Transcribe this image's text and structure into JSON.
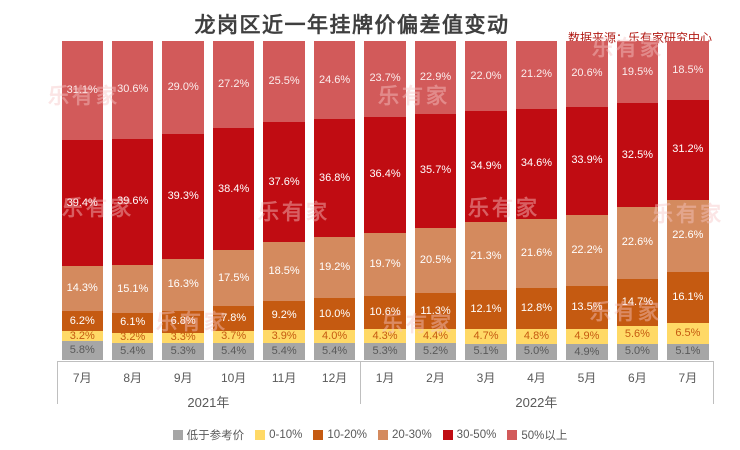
{
  "title": "龙岗区近一年挂牌价偏差值变动",
  "source": "数据来源：乐有家研究中心",
  "watermark": "乐有家",
  "chart_data": {
    "type": "bar",
    "stacked": true,
    "unit": "%",
    "title": "龙岗区近一年挂牌价偏差值变动",
    "legend_position": "bottom",
    "ylim": [
      0,
      100
    ],
    "grid": false,
    "categories": [
      "7月",
      "8月",
      "9月",
      "10月",
      "11月",
      "12月",
      "1月",
      "2月",
      "3月",
      "4月",
      "5月",
      "6月",
      "7月"
    ],
    "year_groups": [
      {
        "label": "2021年",
        "span": 6
      },
      {
        "label": "2022年",
        "span": 7
      }
    ],
    "series": [
      {
        "name": "低于参考价",
        "color": "#A6A6A6",
        "label_color": "#595959",
        "values": [
          5.8,
          5.4,
          5.3,
          5.4,
          5.4,
          5.4,
          5.3,
          5.2,
          5.1,
          5.0,
          4.9,
          5.0,
          5.1
        ]
      },
      {
        "name": "0-10%",
        "color": "#FFD966",
        "label_color": "#C55A11",
        "values": [
          3.2,
          3.2,
          3.3,
          3.7,
          3.9,
          4.0,
          4.3,
          4.4,
          4.7,
          4.8,
          4.9,
          5.6,
          6.5
        ]
      },
      {
        "name": "10-20%",
        "color": "#C55A11",
        "label_color": "#FFFFFF",
        "values": [
          6.2,
          6.1,
          6.8,
          7.8,
          9.2,
          10.0,
          10.6,
          11.3,
          12.1,
          12.8,
          13.5,
          14.7,
          16.1
        ]
      },
      {
        "name": "20-30%",
        "color": "#D48A5E",
        "label_color": "#FFFFFF",
        "values": [
          14.3,
          15.1,
          16.3,
          17.5,
          18.5,
          19.2,
          19.7,
          20.5,
          21.3,
          21.6,
          22.2,
          22.6,
          22.6
        ]
      },
      {
        "name": "30-50%",
        "color": "#C00C12",
        "label_color": "#FFFFFF",
        "values": [
          39.4,
          39.6,
          39.3,
          38.4,
          37.6,
          36.8,
          36.4,
          35.7,
          34.9,
          34.6,
          33.9,
          32.5,
          31.2
        ]
      },
      {
        "name": "50%以上",
        "color": "#D25A5A",
        "label_color": "#FBEDED",
        "values": [
          31.1,
          30.6,
          29.0,
          27.2,
          25.5,
          24.6,
          23.7,
          22.9,
          22.0,
          21.2,
          20.6,
          19.5,
          18.5
        ]
      }
    ]
  }
}
